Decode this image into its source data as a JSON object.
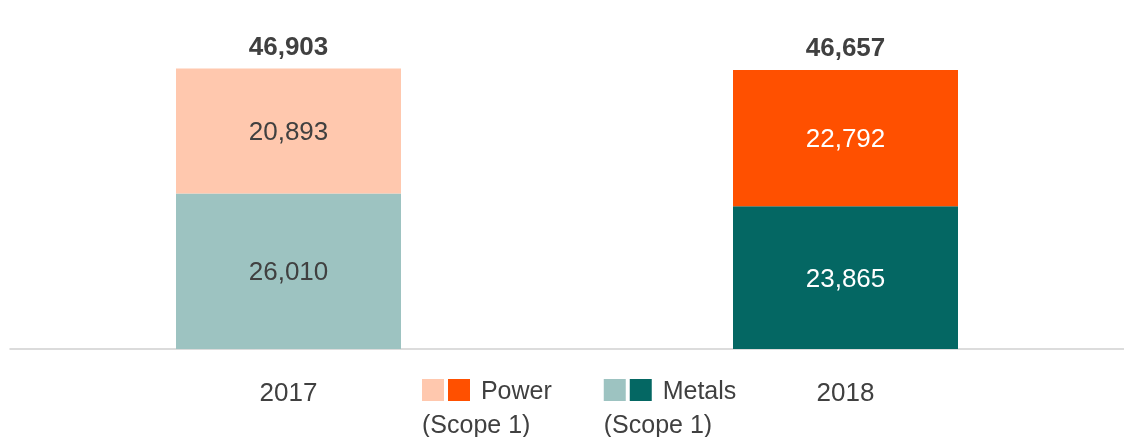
{
  "chart_data": {
    "type": "bar",
    "stacked": true,
    "categories": [
      "2017",
      "2018"
    ],
    "series": [
      {
        "name": "Metals (Scope 1)",
        "colors": [
          "#9dc3c1",
          "#046763"
        ],
        "values": [
          26010,
          23865
        ],
        "value_labels": [
          "26,010",
          "23,865"
        ]
      },
      {
        "name": "Power (Scope 1)",
        "colors": [
          "#ffc8ae",
          "#ff5000"
        ],
        "values": [
          20893,
          22792
        ],
        "value_labels": [
          "20,893",
          "22,792"
        ]
      }
    ],
    "totals": [
      "46,903",
      "46,657"
    ],
    "legend": "bottom"
  }
}
